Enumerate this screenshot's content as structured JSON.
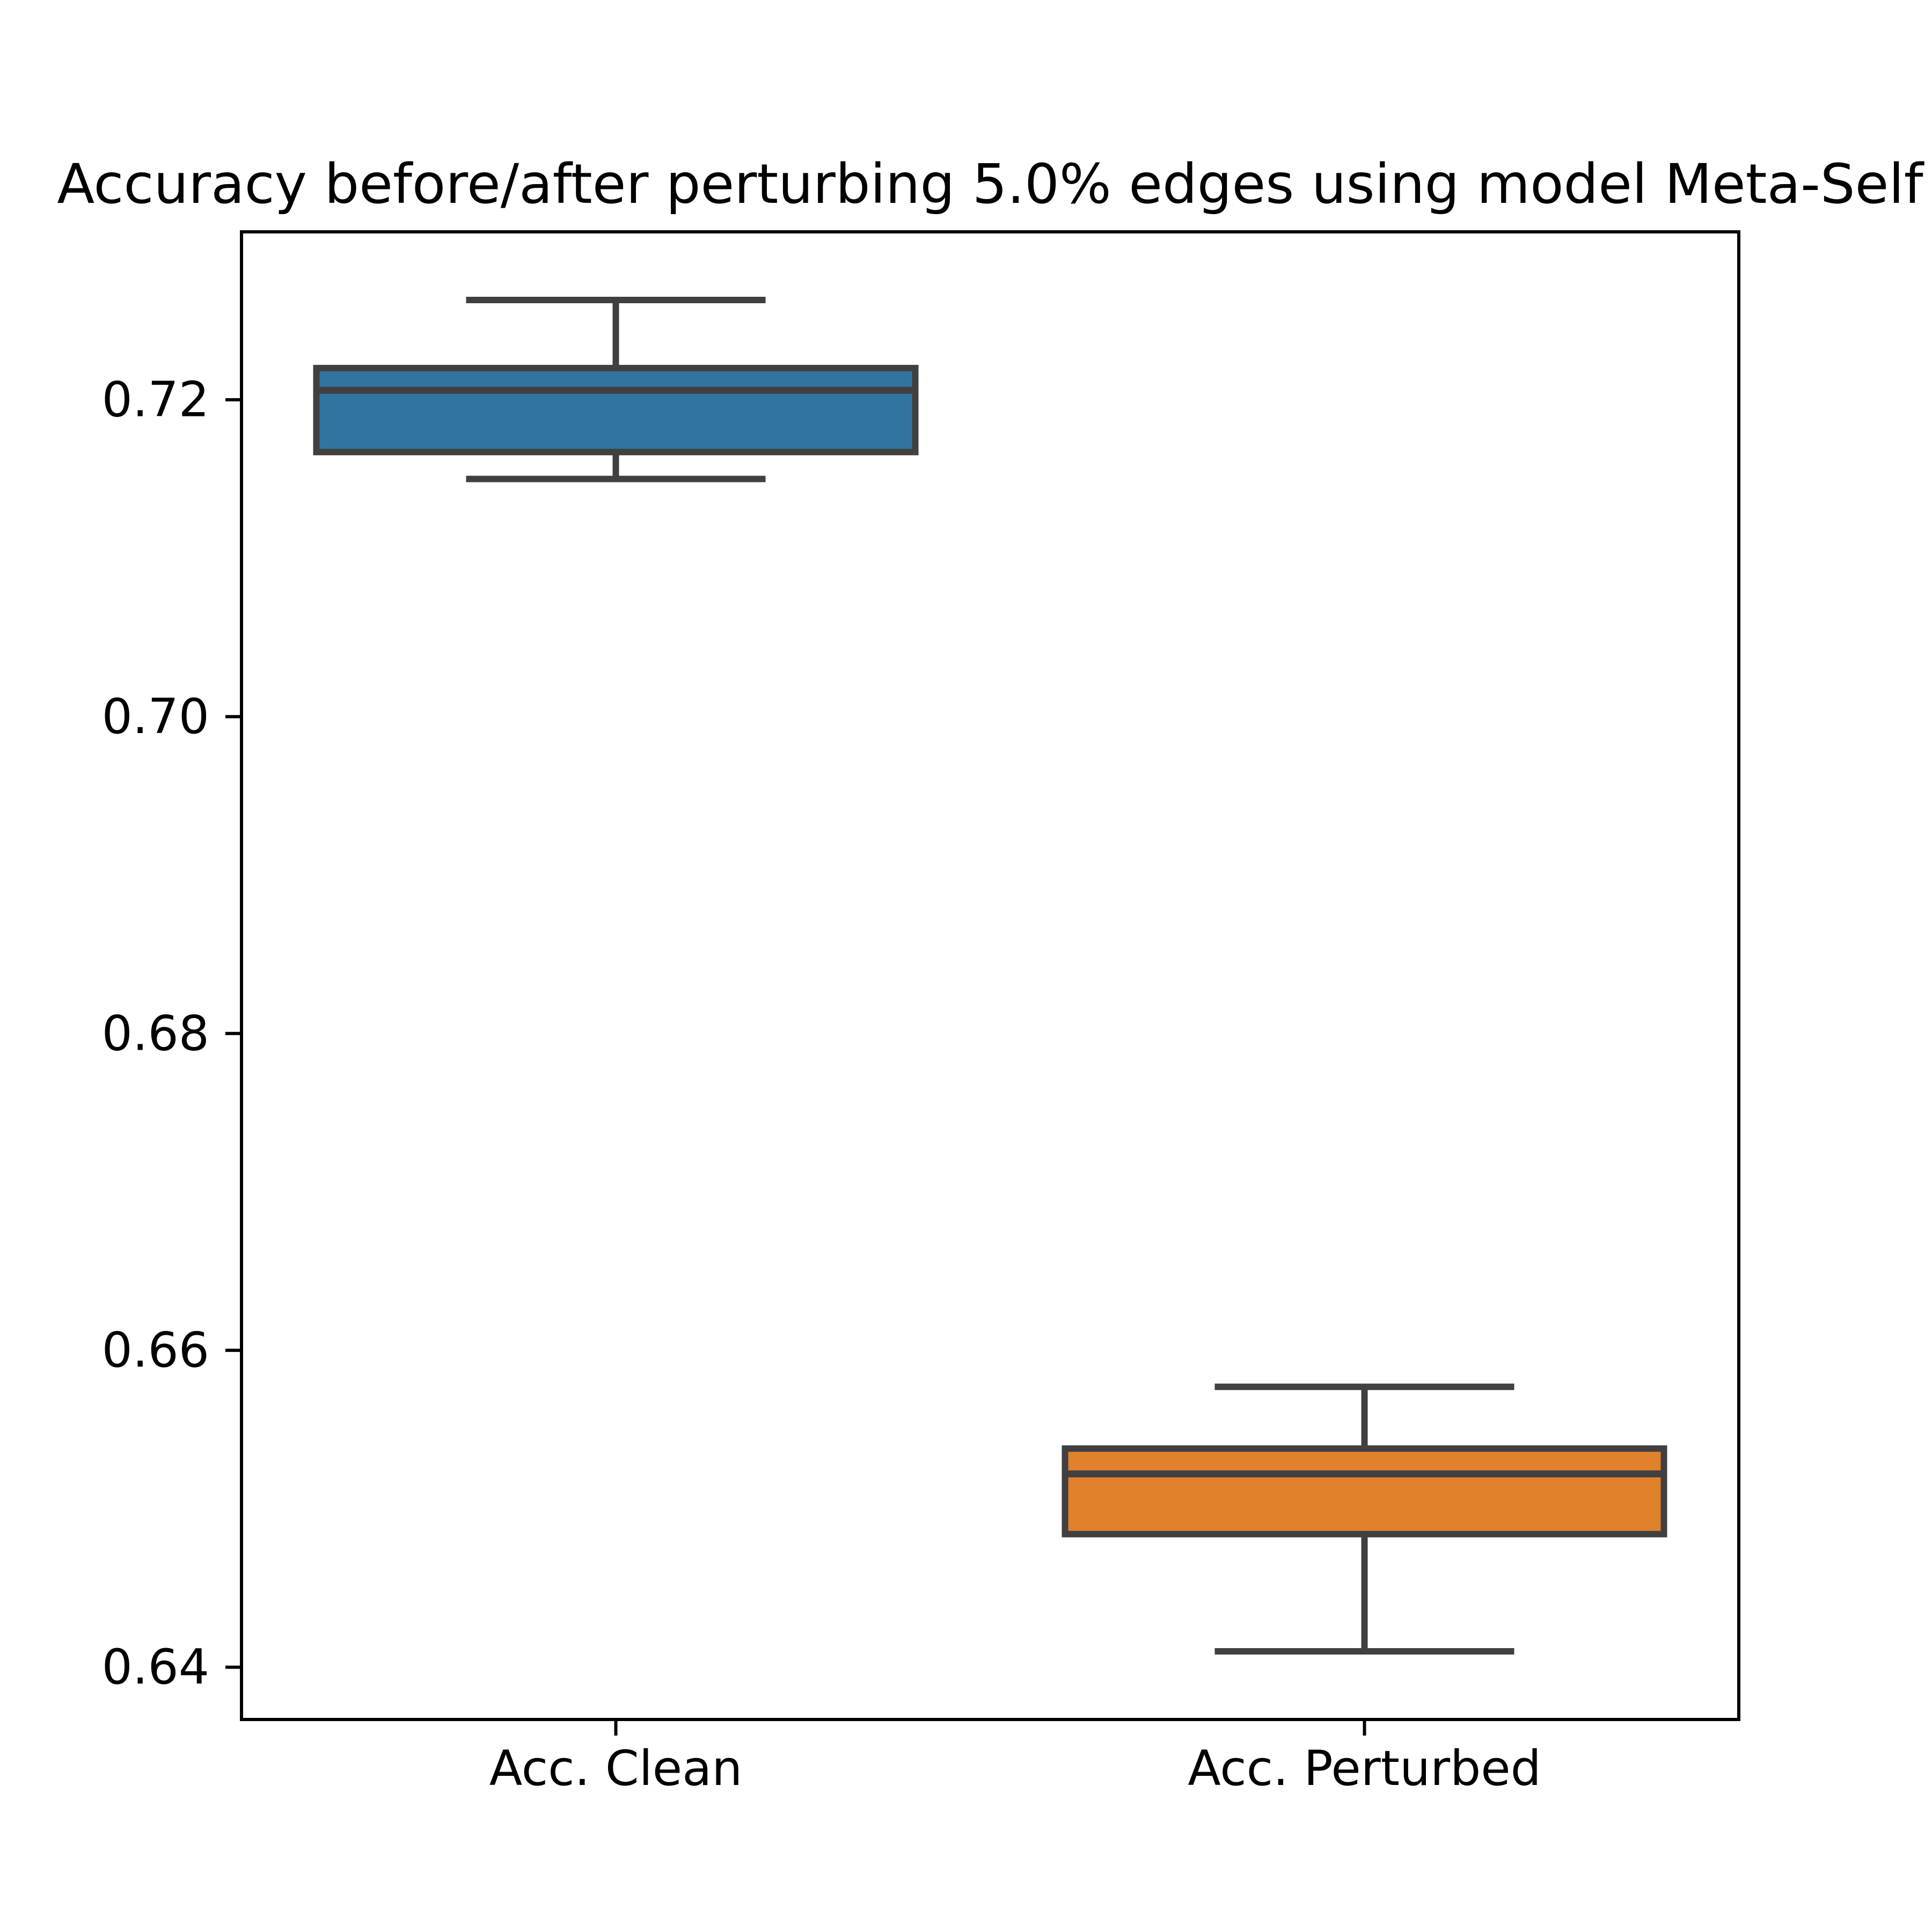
{
  "chart_data": {
    "type": "box",
    "title": "Accuracy before/after perturbing 5.0% edges using model Meta-Self",
    "categories": [
      "Acc. Clean",
      "Acc. Perturbed"
    ],
    "boxes": [
      {
        "label": "Acc. Clean",
        "whisker_low": 0.715,
        "q1": 0.7167,
        "median": 0.7206,
        "q3": 0.722,
        "whisker_high": 0.7263,
        "fill_color": "#3274a1"
      },
      {
        "label": "Acc. Perturbed",
        "whisker_low": 0.641,
        "q1": 0.6484,
        "median": 0.6522,
        "q3": 0.6538,
        "whisker_high": 0.6577,
        "fill_color": "#e1812c"
      }
    ],
    "ylim": [
      0.6367,
      0.7306
    ],
    "yticks": [
      {
        "value": 0.64,
        "label": "0.64"
      },
      {
        "value": 0.66,
        "label": "0.66"
      },
      {
        "value": 0.68,
        "label": "0.68"
      },
      {
        "value": 0.7,
        "label": "0.70"
      },
      {
        "value": 0.72,
        "label": "0.72"
      }
    ],
    "xlabel": "",
    "ylabel": "",
    "grid": false,
    "legend": null,
    "line_color": "#404040",
    "spine_color": "#000000",
    "background_color": "#ffffff"
  }
}
